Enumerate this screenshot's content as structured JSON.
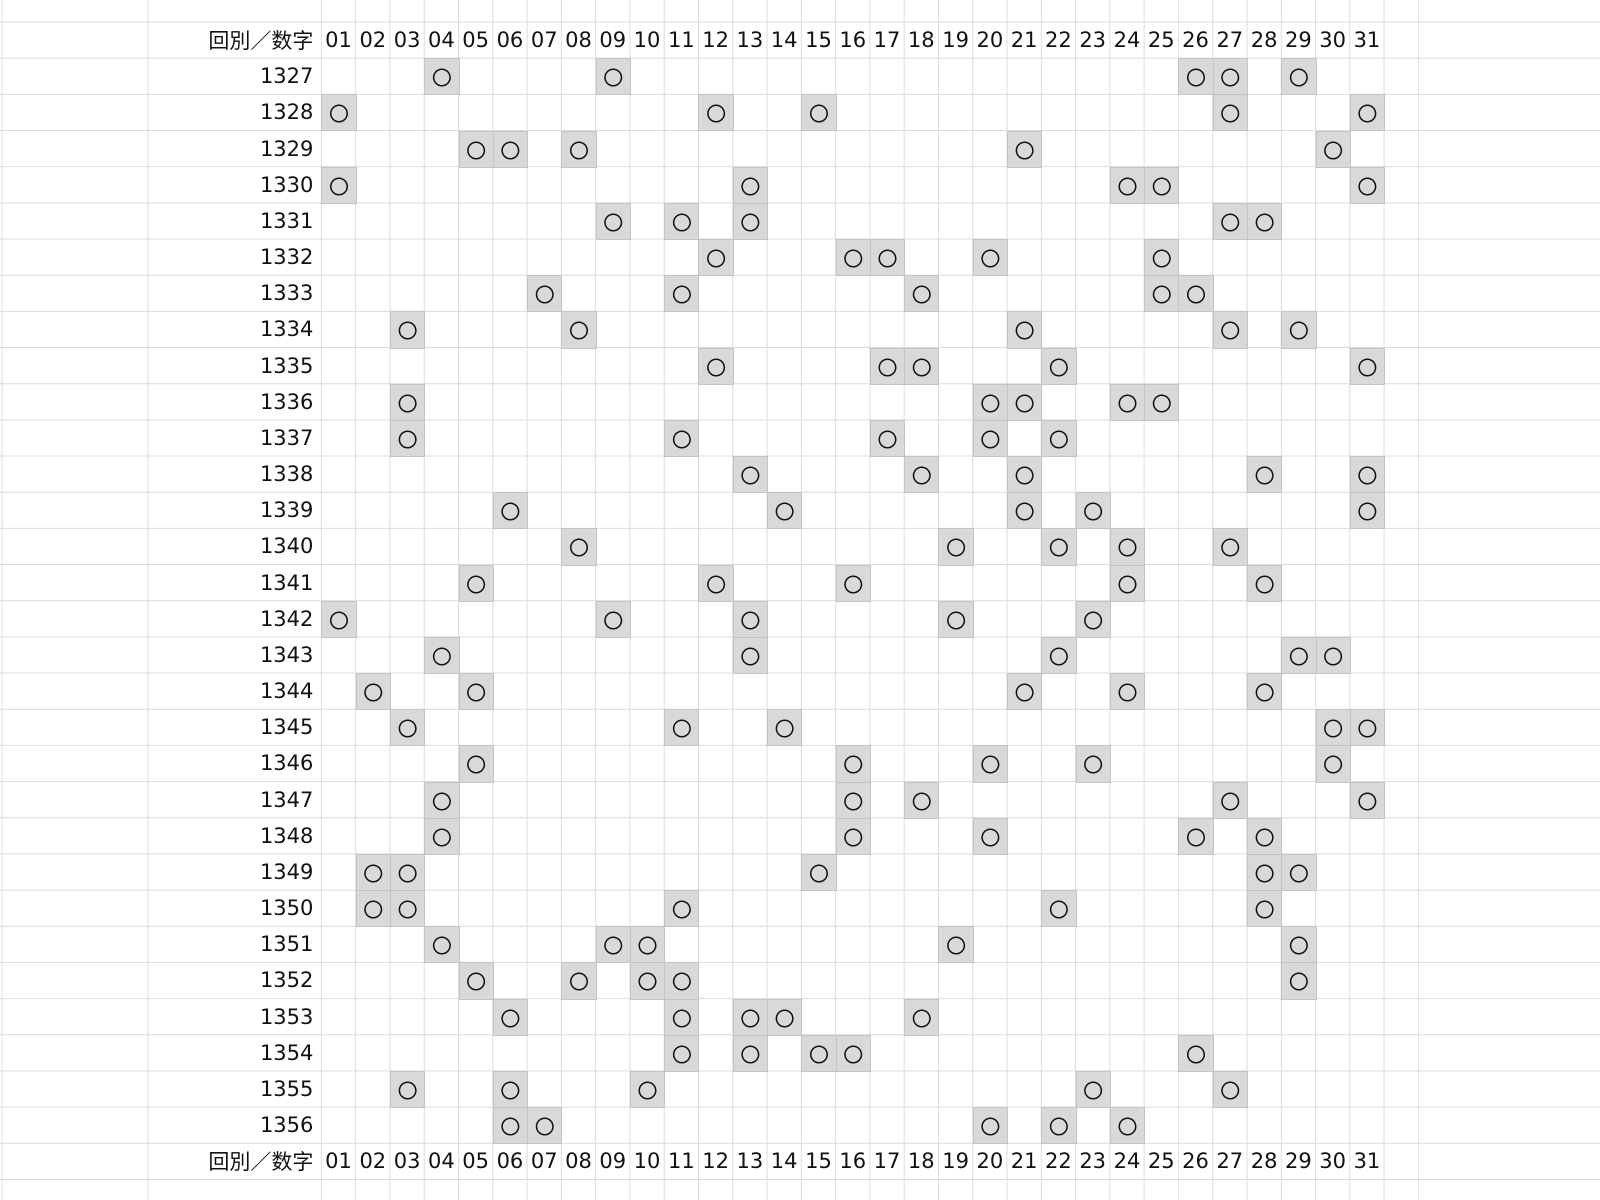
{
  "corner_label": "回別／数字",
  "columns": [
    "01",
    "02",
    "03",
    "04",
    "05",
    "06",
    "07",
    "08",
    "09",
    "10",
    "11",
    "12",
    "13",
    "14",
    "15",
    "16",
    "17",
    "18",
    "19",
    "20",
    "21",
    "22",
    "23",
    "24",
    "25",
    "26",
    "27",
    "28",
    "29",
    "30",
    "31"
  ],
  "mark": "〇",
  "rows": [
    {
      "label": "1327",
      "hits": [
        4,
        9,
        26,
        27,
        29
      ]
    },
    {
      "label": "1328",
      "hits": [
        1,
        12,
        15,
        27,
        31
      ]
    },
    {
      "label": "1329",
      "hits": [
        5,
        6,
        8,
        21,
        30
      ]
    },
    {
      "label": "1330",
      "hits": [
        1,
        13,
        24,
        25,
        31
      ]
    },
    {
      "label": "1331",
      "hits": [
        9,
        11,
        13,
        27,
        28
      ]
    },
    {
      "label": "1332",
      "hits": [
        12,
        16,
        17,
        20,
        25
      ]
    },
    {
      "label": "1333",
      "hits": [
        7,
        11,
        18,
        25,
        26
      ]
    },
    {
      "label": "1334",
      "hits": [
        3,
        8,
        21,
        27,
        29
      ]
    },
    {
      "label": "1335",
      "hits": [
        12,
        17,
        18,
        22,
        31
      ]
    },
    {
      "label": "1336",
      "hits": [
        3,
        20,
        21,
        24,
        25
      ]
    },
    {
      "label": "1337",
      "hits": [
        3,
        11,
        17,
        20,
        22
      ]
    },
    {
      "label": "1338",
      "hits": [
        13,
        18,
        21,
        28,
        31
      ]
    },
    {
      "label": "1339",
      "hits": [
        6,
        14,
        21,
        23,
        31
      ]
    },
    {
      "label": "1340",
      "hits": [
        8,
        19,
        22,
        24,
        27
      ]
    },
    {
      "label": "1341",
      "hits": [
        5,
        12,
        16,
        24,
        28
      ]
    },
    {
      "label": "1342",
      "hits": [
        1,
        9,
        13,
        19,
        23
      ]
    },
    {
      "label": "1343",
      "hits": [
        4,
        13,
        22,
        29,
        30
      ]
    },
    {
      "label": "1344",
      "hits": [
        2,
        5,
        21,
        24,
        28
      ]
    },
    {
      "label": "1345",
      "hits": [
        3,
        11,
        14,
        30,
        31
      ]
    },
    {
      "label": "1346",
      "hits": [
        5,
        16,
        20,
        23,
        30
      ]
    },
    {
      "label": "1347",
      "hits": [
        4,
        16,
        18,
        27,
        31
      ]
    },
    {
      "label": "1348",
      "hits": [
        4,
        16,
        20,
        26,
        28
      ]
    },
    {
      "label": "1349",
      "hits": [
        2,
        3,
        15,
        28,
        29
      ]
    },
    {
      "label": "1350",
      "hits": [
        2,
        3,
        11,
        22,
        28
      ]
    },
    {
      "label": "1351",
      "hits": [
        4,
        9,
        10,
        19,
        29
      ]
    },
    {
      "label": "1352",
      "hits": [
        5,
        8,
        10,
        11,
        29
      ]
    },
    {
      "label": "1353",
      "hits": [
        6,
        11,
        13,
        14,
        18
      ]
    },
    {
      "label": "1354",
      "hits": [
        11,
        13,
        15,
        16,
        26
      ]
    },
    {
      "label": "1355",
      "hits": [
        3,
        6,
        10,
        23,
        27
      ]
    },
    {
      "label": "1356",
      "hits": [
        6,
        7,
        20,
        22,
        24
      ]
    }
  ]
}
